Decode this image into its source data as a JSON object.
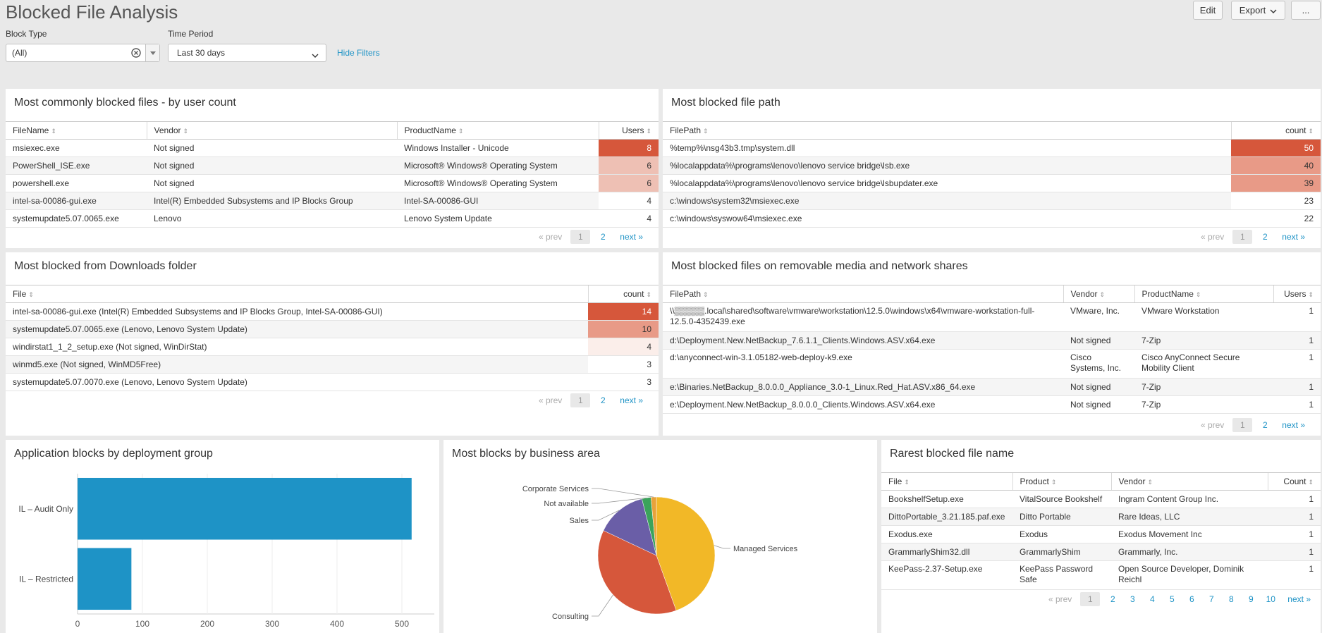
{
  "header": {
    "title": "Blocked File Analysis",
    "edit_label": "Edit",
    "export_label": "Export",
    "more_label": "..."
  },
  "filters": {
    "block_type_label": "Block Type",
    "block_type_value": "(All)",
    "time_period_label": "Time Period",
    "time_period_value": "Last 30 days",
    "hide_filters_label": "Hide Filters"
  },
  "pager": {
    "prev": "« prev",
    "next": "next »"
  },
  "panel_common_files": {
    "title": "Most commonly blocked files - by user count",
    "columns": [
      "FileName",
      "Vendor",
      "ProductName",
      "Users"
    ],
    "rows": [
      [
        "msiexec.exe",
        "Not signed",
        "Windows Installer - Unicode",
        "8"
      ],
      [
        "PowerShell_ISE.exe",
        "Not signed",
        "Microsoft® Windows® Operating System",
        "6"
      ],
      [
        "powershell.exe",
        "Not signed",
        "Microsoft® Windows® Operating System",
        "6"
      ],
      [
        "intel-sa-00086-gui.exe",
        "Intel(R) Embedded Subsystems and IP Blocks Group",
        "Intel-SA-00086-GUI",
        "4"
      ],
      [
        "systemupdate5.07.0065.exe",
        "Lenovo",
        "Lenovo System Update",
        "4"
      ]
    ],
    "pages": [
      "1",
      "2"
    ]
  },
  "panel_file_path": {
    "title": "Most blocked file path",
    "columns": [
      "FilePath",
      "count"
    ],
    "rows": [
      [
        "%temp%\\nsg43b3.tmp\\system.dll",
        "50"
      ],
      [
        "%localappdata%\\programs\\lenovo\\lenovo service bridge\\lsb.exe",
        "40"
      ],
      [
        "%localappdata%\\programs\\lenovo\\lenovo service bridge\\lsbupdater.exe",
        "39"
      ],
      [
        "c:\\windows\\system32\\msiexec.exe",
        "23"
      ],
      [
        "c:\\windows\\syswow64\\msiexec.exe",
        "22"
      ]
    ],
    "pages": [
      "1",
      "2"
    ]
  },
  "panel_downloads": {
    "title": "Most blocked from Downloads folder",
    "columns": [
      "File",
      "count"
    ],
    "rows": [
      [
        "intel-sa-00086-gui.exe (Intel(R) Embedded Subsystems and IP Blocks Group, Intel-SA-00086-GUI)",
        "14"
      ],
      [
        "systemupdate5.07.0065.exe (Lenovo, Lenovo System Update)",
        "10"
      ],
      [
        "windirstat1_1_2_setup.exe (Not signed, WinDirStat)",
        "4"
      ],
      [
        "winmd5.exe (Not signed, WinMD5Free)",
        "3"
      ],
      [
        "systemupdate5.07.0070.exe (Lenovo, Lenovo System Update)",
        "3"
      ]
    ],
    "pages": [
      "1",
      "2"
    ]
  },
  "panel_removable": {
    "title": "Most blocked files on removable media and network shares",
    "columns": [
      "FilePath",
      "Vendor",
      "ProductName",
      "Users"
    ],
    "rows": [
      [
        "\\\\▒▒▒▒▒.local\\shared\\software\\vmware\\workstation\\12.5.0\\windows\\x64\\vmware-workstation-full-12.5.0-4352439.exe",
        "VMware, Inc.",
        "VMware Workstation",
        "1"
      ],
      [
        "d:\\Deployment.New.NetBackup_7.6.1.1_Clients.Windows.ASV.x64.exe",
        "Not signed",
        "7-Zip",
        "1"
      ],
      [
        "d:\\anyconnect-win-3.1.05182-web-deploy-k9.exe",
        "Cisco Systems, Inc.",
        "Cisco AnyConnect Secure Mobility Client",
        "1"
      ],
      [
        "e:\\Binaries.NetBackup_8.0.0.0_Appliance_3.0-1_Linux.Red_Hat.ASV.x86_64.exe",
        "Not signed",
        "7-Zip",
        "1"
      ],
      [
        "e:\\Deployment.New.NetBackup_8.0.0.0_Clients.Windows.ASV.x64.exe",
        "Not signed",
        "7-Zip",
        "1"
      ]
    ],
    "pages": [
      "1",
      "2"
    ]
  },
  "panel_deploy": {
    "title": "Application blocks by deployment group"
  },
  "panel_business": {
    "title": "Most blocks by business area"
  },
  "panel_rarest": {
    "title": "Rarest blocked file name",
    "columns": [
      "File",
      "Product",
      "Vendor",
      "Count"
    ],
    "rows": [
      [
        "BookshelfSetup.exe",
        "VitalSource Bookshelf",
        "Ingram Content Group Inc.",
        "1"
      ],
      [
        "DittoPortable_3.21.185.paf.exe",
        "Ditto Portable",
        "Rare Ideas, LLC",
        "1"
      ],
      [
        "Exodus.exe",
        "Exodus",
        "Exodus Movement Inc",
        "1"
      ],
      [
        "GrammarlyShim32.dll",
        "GrammarlyShim",
        "Grammarly, Inc.",
        "1"
      ],
      [
        "KeePass-2.37-Setup.exe",
        "KeePass Password Safe",
        "Open Source Developer, Dominik Reichl",
        "1"
      ]
    ],
    "pages": [
      "1",
      "2",
      "3",
      "4",
      "5",
      "6",
      "7",
      "8",
      "9",
      "10"
    ]
  },
  "chart_data": [
    {
      "type": "bar",
      "orientation": "horizontal",
      "categories": [
        "IL – Audit Only",
        "IL – Restricted"
      ],
      "values": [
        515,
        83
      ],
      "xlim": [
        0,
        550
      ],
      "xticks": [
        "0",
        "100",
        "200",
        "300",
        "400",
        "500"
      ],
      "color": "#1e93c6"
    },
    {
      "type": "pie",
      "labels": [
        "Managed Services",
        "Consulting",
        "Sales",
        "Not available",
        "Corporate Services"
      ],
      "values": [
        44.5,
        37.5,
        14,
        2.5,
        1.5
      ],
      "colors": [
        "#f2b827",
        "#d6573b",
        "#6a5ea7",
        "#3ba35b",
        "#e8a23a"
      ]
    }
  ]
}
